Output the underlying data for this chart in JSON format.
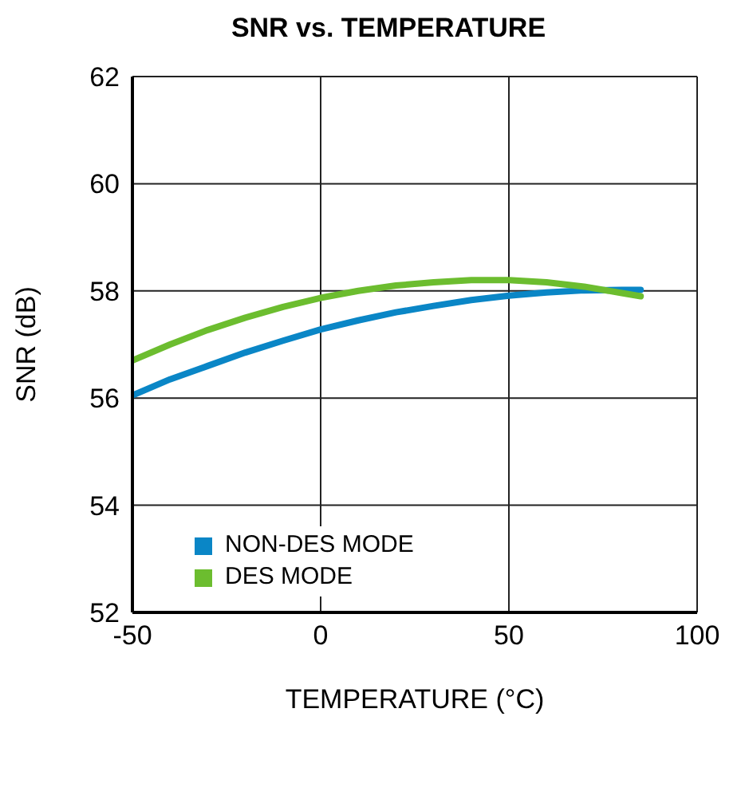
{
  "chart_data": {
    "type": "line",
    "title": "SNR vs. TEMPERATURE",
    "xlabel": "TEMPERATURE (°C)",
    "ylabel": "SNR (dB)",
    "xlim": [
      -50,
      100
    ],
    "xticks": [
      -50,
      0,
      50,
      100
    ],
    "ylim": [
      52,
      62
    ],
    "yticks": [
      52,
      54,
      56,
      58,
      60,
      62
    ],
    "grid": true,
    "legend": "bottom left",
    "marker": "none",
    "line_style": "solid",
    "series": [
      {
        "name": "NON-DES MODE",
        "color": "#0a86c6",
        "x": [
          -50,
          -40,
          -30,
          -20,
          -10,
          0,
          10,
          20,
          30,
          40,
          50,
          60,
          70,
          80,
          85
        ],
        "values": [
          56.05,
          56.35,
          56.6,
          56.85,
          57.07,
          57.28,
          57.45,
          57.6,
          57.72,
          57.83,
          57.91,
          57.97,
          58.01,
          58.02,
          58.02
        ]
      },
      {
        "name": "DES MODE",
        "color": "#6cbd2f",
        "x": [
          -50,
          -40,
          -30,
          -20,
          -10,
          0,
          10,
          20,
          30,
          40,
          50,
          60,
          70,
          80,
          85
        ],
        "values": [
          56.7,
          57.0,
          57.27,
          57.5,
          57.7,
          57.87,
          58.0,
          58.1,
          58.16,
          58.2,
          58.2,
          58.16,
          58.08,
          57.96,
          57.9
        ]
      }
    ]
  }
}
